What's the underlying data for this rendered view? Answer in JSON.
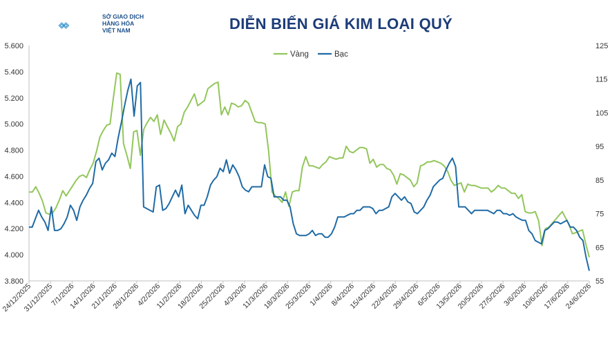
{
  "header": {
    "org_lines": [
      "SỞ GIAO DỊCH",
      "HÀNG HÓA",
      "VIỆT NAM"
    ],
    "title": "DIỄN BIẾN GIÁ KIM LOẠI QUÝ"
  },
  "colors": {
    "gold": "#92c65a",
    "silver": "#1f6aa5",
    "brand": "#2a8fc9"
  },
  "chart_data": {
    "type": "line",
    "legend_position": "top-center",
    "grid": false,
    "y_left": {
      "min": 3800,
      "max": 5600,
      "ticks": [
        "3.800",
        "4.000",
        "4.200",
        "4.400",
        "4.600",
        "4.800",
        "5.000",
        "5.200",
        "5.400",
        "5.600"
      ]
    },
    "y_right": {
      "min": 55,
      "max": 125,
      "ticks": [
        "55",
        "65",
        "75",
        "85",
        "95",
        "105",
        "115",
        "125"
      ]
    },
    "x_labels": [
      "24/12/2025",
      "31/12/2025",
      "7/1/2026",
      "14/1/2026",
      "21/1/2026",
      "28/1/2026",
      "4/2/2026",
      "11/2/2026",
      "18/2/2026",
      "25/2/2026",
      "4/3/2026",
      "11/3/2026",
      "18/3/2026",
      "25/3/2026",
      "1/4/2026",
      "8/4/2026",
      "15/4/2026",
      "22/4/2026",
      "29/4/2026",
      "6/5/2026",
      "13/5/2026",
      "20/5/2026",
      "27/5/2026",
      "3/6/2026",
      "10/6/2026",
      "17/6/2026",
      "24/6/2026"
    ],
    "series": [
      {
        "name": "Vàng",
        "axis": "left",
        "values": [
          4480,
          4480,
          4520,
          4470,
          4410,
          4320,
          4310,
          4320,
          4360,
          4420,
          4490,
          4450,
          4490,
          4530,
          4570,
          4600,
          4610,
          4590,
          4650,
          4700,
          4790,
          4900,
          4950,
          4990,
          5000,
          5200,
          5390,
          5380,
          4850,
          4760,
          4660,
          4940,
          4950,
          4760,
          4960,
          5010,
          5050,
          5020,
          5070,
          4920,
          5030,
          4980,
          4930,
          4870,
          4980,
          5000,
          5090,
          5130,
          5180,
          5230,
          5140,
          5160,
          5180,
          5270,
          5290,
          5310,
          5320,
          5070,
          5130,
          5070,
          5160,
          5150,
          5130,
          5140,
          5180,
          5160,
          5090,
          5020,
          5010,
          5010,
          5000,
          4790,
          4480,
          4450,
          4430,
          4400,
          4480,
          4370,
          4480,
          4490,
          4490,
          4670,
          4750,
          4680,
          4680,
          4670,
          4660,
          4690,
          4710,
          4750,
          4740,
          4730,
          4740,
          4740,
          4830,
          4790,
          4780,
          4800,
          4820,
          4820,
          4810,
          4700,
          4730,
          4670,
          4690,
          4690,
          4660,
          4650,
          4610,
          4540,
          4620,
          4610,
          4590,
          4570,
          4520,
          4550,
          4680,
          4690,
          4710,
          4710,
          4720,
          4710,
          4700,
          4680,
          4640,
          4570,
          4530,
          4540,
          4550,
          4480,
          4540,
          4530,
          4530,
          4520,
          4510,
          4510,
          4510,
          4480,
          4500,
          4530,
          4510,
          4510,
          4490,
          4470,
          4470,
          4430,
          4460,
          4330,
          4320,
          4320,
          4330,
          4260,
          4070,
          4200,
          4210,
          4240,
          4270,
          4300,
          4330,
          4280,
          4230,
          4160,
          4170,
          4180,
          4190,
          4080,
          3980
        ]
      },
      {
        "name": "Bạc",
        "axis": "right",
        "values": [
          71,
          71,
          73.5,
          76,
          74,
          72.5,
          70,
          77,
          70,
          70,
          70.5,
          72,
          74,
          77.5,
          76,
          73,
          77,
          79,
          80.5,
          82.5,
          84,
          90.5,
          91.5,
          88,
          90,
          91,
          93,
          92,
          97.5,
          102,
          107,
          111.5,
          115,
          104,
          113,
          114,
          77,
          76.5,
          76,
          75.5,
          83,
          83.5,
          76,
          76.5,
          78,
          80,
          82,
          80,
          83.5,
          75,
          77.5,
          76,
          74.5,
          73.5,
          77.5,
          77.5,
          80,
          83.5,
          85,
          86,
          88.5,
          87.5,
          91,
          87,
          89.5,
          88,
          86,
          83,
          82,
          81.5,
          83,
          83,
          83,
          83,
          89.5,
          86,
          85.5,
          80,
          80,
          80,
          79,
          79,
          77,
          72,
          69,
          68.5,
          68.5,
          68.5,
          69,
          70,
          68.5,
          69,
          69,
          68,
          68,
          69,
          71,
          74,
          74,
          74,
          74.5,
          75,
          75,
          76,
          76,
          77,
          77,
          77,
          76.5,
          75,
          76,
          76,
          76.5,
          77,
          80,
          81,
          80,
          79,
          80,
          78.5,
          78,
          75.5,
          75,
          76,
          77,
          79,
          80.5,
          83,
          84,
          85,
          85.5,
          88,
          90,
          91.5,
          89,
          77,
          77,
          77,
          76,
          75,
          76,
          76,
          76,
          76,
          76,
          75.5,
          75,
          76,
          76,
          75,
          75,
          74.5,
          75,
          74,
          73.5,
          73,
          73,
          70,
          69,
          67,
          66.5,
          66,
          70,
          70.5,
          71.5,
          72.5,
          72.5,
          72,
          72.5,
          73,
          71,
          71,
          70,
          68,
          67,
          62,
          58
        ]
      }
    ]
  }
}
